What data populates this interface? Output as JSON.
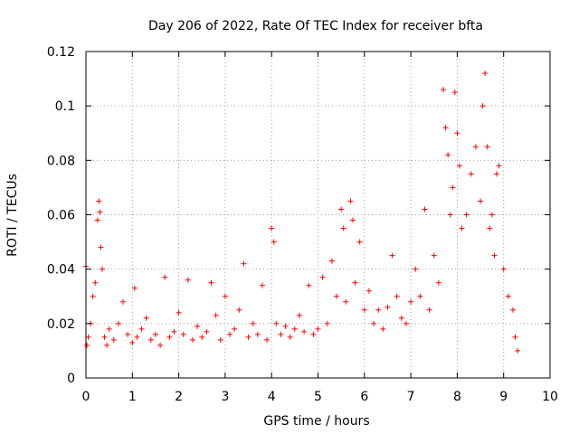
{
  "chart_data": {
    "type": "scatter",
    "title": "Day 206 of 2022, Rate Of TEC Index for receiver bfta",
    "xlabel": "GPS time / hours",
    "ylabel": "ROTI / TECUs",
    "xlim": [
      0,
      10
    ],
    "ylim": [
      0,
      0.12
    ],
    "xticks": [
      0,
      1,
      2,
      3,
      4,
      5,
      6,
      7,
      8,
      9,
      10
    ],
    "xtick_labels": [
      "0",
      "1",
      "2",
      "3",
      "4",
      "5",
      "6",
      "7",
      "8",
      "9",
      "10"
    ],
    "yticks": [
      0,
      0.02,
      0.04,
      0.06,
      0.08,
      0.1,
      0.12
    ],
    "ytick_labels": [
      "0",
      "0.02",
      "0.04",
      "0.06",
      "0.08",
      "0.1",
      "0.12"
    ],
    "grid": true,
    "marker": "plus",
    "color": "#ff0000",
    "series": [
      {
        "name": "ROTI",
        "x": [
          0.0,
          0.02,
          0.05,
          0.1,
          0.15,
          0.2,
          0.25,
          0.28,
          0.3,
          0.32,
          0.35,
          0.4,
          0.45,
          0.5,
          0.6,
          0.7,
          0.8,
          0.9,
          1.0,
          1.05,
          1.1,
          1.2,
          1.3,
          1.4,
          1.5,
          1.6,
          1.7,
          1.8,
          1.9,
          2.0,
          2.1,
          2.2,
          2.3,
          2.4,
          2.5,
          2.6,
          2.7,
          2.8,
          2.9,
          3.0,
          3.1,
          3.2,
          3.3,
          3.4,
          3.5,
          3.6,
          3.7,
          3.8,
          3.9,
          4.0,
          4.05,
          4.1,
          4.2,
          4.3,
          4.4,
          4.5,
          4.6,
          4.7,
          4.8,
          4.9,
          5.0,
          5.1,
          5.2,
          5.3,
          5.4,
          5.5,
          5.55,
          5.6,
          5.7,
          5.75,
          5.8,
          5.9,
          6.0,
          6.1,
          6.2,
          6.3,
          6.4,
          6.5,
          6.6,
          6.7,
          6.8,
          6.9,
          7.0,
          7.1,
          7.2,
          7.3,
          7.4,
          7.5,
          7.6,
          7.7,
          7.75,
          7.8,
          7.85,
          7.9,
          7.95,
          8.0,
          8.05,
          8.1,
          8.2,
          8.3,
          8.4,
          8.5,
          8.55,
          8.6,
          8.65,
          8.7,
          8.75,
          8.8,
          8.85,
          8.9,
          9.0,
          9.1,
          9.2,
          9.25,
          9.3
        ],
        "y": [
          0.041,
          0.012,
          0.015,
          0.02,
          0.03,
          0.035,
          0.058,
          0.065,
          0.061,
          0.048,
          0.04,
          0.015,
          0.012,
          0.018,
          0.014,
          0.02,
          0.028,
          0.016,
          0.013,
          0.033,
          0.015,
          0.018,
          0.022,
          0.014,
          0.016,
          0.012,
          0.037,
          0.015,
          0.017,
          0.024,
          0.016,
          0.036,
          0.014,
          0.019,
          0.015,
          0.017,
          0.035,
          0.023,
          0.014,
          0.03,
          0.016,
          0.018,
          0.025,
          0.042,
          0.015,
          0.02,
          0.016,
          0.034,
          0.014,
          0.055,
          0.05,
          0.02,
          0.016,
          0.019,
          0.015,
          0.018,
          0.023,
          0.017,
          0.034,
          0.016,
          0.018,
          0.037,
          0.02,
          0.043,
          0.03,
          0.062,
          0.055,
          0.028,
          0.065,
          0.058,
          0.035,
          0.05,
          0.025,
          0.032,
          0.02,
          0.025,
          0.018,
          0.026,
          0.045,
          0.03,
          0.022,
          0.02,
          0.028,
          0.04,
          0.03,
          0.062,
          0.025,
          0.045,
          0.035,
          0.106,
          0.092,
          0.082,
          0.06,
          0.07,
          0.105,
          0.09,
          0.078,
          0.055,
          0.06,
          0.075,
          0.085,
          0.065,
          0.1,
          0.112,
          0.085,
          0.055,
          0.06,
          0.045,
          0.075,
          0.078,
          0.04,
          0.03,
          0.025,
          0.015,
          0.01
        ]
      }
    ]
  }
}
